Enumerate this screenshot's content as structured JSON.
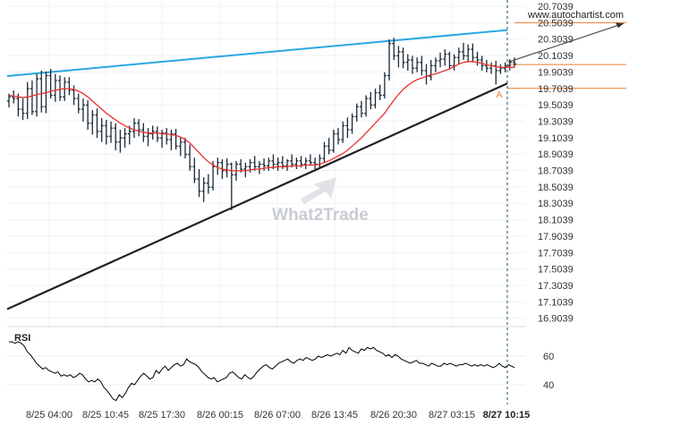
{
  "chart_data": {
    "type": "candlestick",
    "source_label": "www.autochartist.com",
    "watermark": "What2Trade",
    "pattern_label": "A",
    "colors": {
      "upper_trendline": "#29a8e0",
      "lower_trendline": "#222222",
      "moving_average": "#e8302a",
      "price_bars": "#1b2a36",
      "level_lines": "#f07b2d",
      "rsi_line": "#000000",
      "current_time_line": "#1e5a7a",
      "watermark": "#c8ccd2"
    },
    "y_axis": {
      "ticks": [
        "20.7039",
        "20.5039",
        "20.3039",
        "20.1039",
        "19.9039",
        "19.7039",
        "19.5039",
        "19.3039",
        "19.1039",
        "18.9039",
        "18.7039",
        "18.5039",
        "18.3039",
        "18.1039",
        "17.9039",
        "17.7039",
        "17.5039",
        "17.3039",
        "17.1039",
        "16.9039"
      ],
      "ylim": [
        16.8039,
        20.7539
      ]
    },
    "x_axis": {
      "ticks": [
        "8/25 04:00",
        "8/25 10:45",
        "8/25 17:30",
        "8/26 00:15",
        "8/26 07:00",
        "8/26 13:45",
        "8/26 20:30",
        "8/27 03:15",
        "8/27 10:15"
      ],
      "current_label": "8/27 10:15"
    },
    "rsi": {
      "label": "RSI",
      "ticks": [
        "60",
        "40"
      ],
      "ylim": [
        25,
        75
      ],
      "values": [
        70,
        70,
        69,
        70,
        69,
        67,
        63,
        61,
        58,
        55,
        53,
        51,
        52,
        50,
        49,
        48,
        49,
        46,
        47,
        46,
        47,
        45,
        46,
        48,
        47,
        44,
        42,
        43,
        42,
        44,
        42,
        38,
        36,
        33,
        30,
        29,
        33,
        31,
        34,
        38,
        41,
        40,
        43,
        46,
        48,
        46,
        44,
        45,
        50,
        48,
        51,
        53,
        50,
        52,
        54,
        55,
        53,
        54,
        58,
        56,
        55,
        54,
        52,
        49,
        47,
        45,
        44,
        45,
        42,
        43,
        44,
        45,
        48,
        49,
        47,
        45,
        44,
        47,
        45,
        44,
        46,
        49,
        51,
        53,
        54,
        52,
        51,
        53,
        55,
        56,
        57,
        58,
        56,
        55,
        57,
        58,
        57,
        59,
        58,
        57,
        58,
        60,
        59,
        60,
        61,
        60,
        61,
        62,
        61,
        64,
        62,
        66,
        64,
        63,
        62,
        65,
        64,
        66,
        65,
        66,
        64,
        63,
        62,
        60,
        61,
        59,
        61,
        60,
        58,
        57,
        56,
        55,
        56,
        57,
        55,
        55,
        54,
        53,
        55,
        54,
        53,
        53,
        55,
        54,
        55,
        54,
        53,
        54,
        54,
        55,
        54,
        53,
        54,
        53,
        54,
        53,
        54,
        53,
        52,
        53,
        55,
        53,
        52,
        54,
        53,
        52
      ]
    },
    "trendlines": [
      {
        "name": "upper-resistance",
        "x": [
          "8/24 20:00",
          "8/27 10:15"
        ],
        "y": [
          19.8539,
          20.4139
        ]
      },
      {
        "name": "lower-support",
        "x": [
          "8/24 20:00",
          "8/27 10:15"
        ],
        "y": [
          17.0139,
          19.7639
        ]
      }
    ],
    "levels": [
      19.9939,
      19.7039,
      20.5039
    ],
    "projection": {
      "from": [
        20.0239
      ],
      "to": [
        20.4939
      ]
    },
    "series": [
      {
        "name": "price",
        "ohlc": [
          [
            19.55,
            19.64,
            19.47,
            19.6
          ],
          [
            19.6,
            19.68,
            19.52,
            19.58
          ],
          [
            19.58,
            19.64,
            19.36,
            19.45
          ],
          [
            19.45,
            19.58,
            19.32,
            19.4
          ],
          [
            19.4,
            19.78,
            19.33,
            19.7
          ],
          [
            19.7,
            19.8,
            19.38,
            19.42
          ],
          [
            19.42,
            19.88,
            19.36,
            19.82
          ],
          [
            19.82,
            19.92,
            19.41,
            19.48
          ],
          [
            19.48,
            19.91,
            19.4,
            19.86
          ],
          [
            19.86,
            19.94,
            19.58,
            19.62
          ],
          [
            19.62,
            19.88,
            19.54,
            19.8
          ],
          [
            19.8,
            19.86,
            19.55,
            19.6
          ],
          [
            19.6,
            19.84,
            19.55,
            19.78
          ],
          [
            19.78,
            19.84,
            19.62,
            19.68
          ],
          [
            19.68,
            19.74,
            19.5,
            19.58
          ],
          [
            19.58,
            19.64,
            19.4,
            19.45
          ],
          [
            19.45,
            19.58,
            19.3,
            19.5
          ],
          [
            19.5,
            19.56,
            19.2,
            19.28
          ],
          [
            19.28,
            19.44,
            19.14,
            19.38
          ],
          [
            19.38,
            19.46,
            19.1,
            19.18
          ],
          [
            19.18,
            19.34,
            19.05,
            19.25
          ],
          [
            19.25,
            19.32,
            19.02,
            19.12
          ],
          [
            19.12,
            19.3,
            19.04,
            19.22
          ],
          [
            19.22,
            19.28,
            18.95,
            19.05
          ],
          [
            19.05,
            19.2,
            18.92,
            19.1
          ],
          [
            19.1,
            19.22,
            18.98,
            19.15
          ],
          [
            19.15,
            19.25,
            19.02,
            19.18
          ],
          [
            19.18,
            19.34,
            19.1,
            19.28
          ],
          [
            19.28,
            19.33,
            19.12,
            19.2
          ],
          [
            19.2,
            19.28,
            19.05,
            19.12
          ],
          [
            19.12,
            19.22,
            19.0,
            19.15
          ],
          [
            19.15,
            19.25,
            19.08,
            19.18
          ],
          [
            19.18,
            19.24,
            19.05,
            19.1
          ],
          [
            19.1,
            19.2,
            18.98,
            19.16
          ],
          [
            19.16,
            19.22,
            19.02,
            19.08
          ],
          [
            19.08,
            19.2,
            18.95,
            19.15
          ],
          [
            19.15,
            19.21,
            18.96,
            19.0
          ],
          [
            19.0,
            19.1,
            18.88,
            19.05
          ],
          [
            19.05,
            19.1,
            18.85,
            18.9
          ],
          [
            18.9,
            19.02,
            18.7,
            18.75
          ],
          [
            18.75,
            18.86,
            18.55,
            18.6
          ],
          [
            18.6,
            18.72,
            18.38,
            18.45
          ],
          [
            18.45,
            18.62,
            18.32,
            18.55
          ],
          [
            18.55,
            18.66,
            18.42,
            18.5
          ],
          [
            18.5,
            18.82,
            18.46,
            18.75
          ],
          [
            18.75,
            18.86,
            18.65,
            18.8
          ],
          [
            18.8,
            18.84,
            18.6,
            18.7
          ],
          [
            18.7,
            18.85,
            18.62,
            18.78
          ],
          [
            18.78,
            18.8,
            18.22,
            18.65
          ],
          [
            18.65,
            18.82,
            18.58,
            18.78
          ],
          [
            18.78,
            18.84,
            18.68,
            18.72
          ],
          [
            18.72,
            18.8,
            18.62,
            18.75
          ],
          [
            18.75,
            18.84,
            18.68,
            18.8
          ],
          [
            18.8,
            18.88,
            18.7,
            18.75
          ],
          [
            18.75,
            18.82,
            18.66,
            18.78
          ],
          [
            18.78,
            18.85,
            18.7,
            18.76
          ],
          [
            18.76,
            18.86,
            18.7,
            18.82
          ],
          [
            18.82,
            18.9,
            18.72,
            18.78
          ],
          [
            18.78,
            18.86,
            18.7,
            18.8
          ],
          [
            18.8,
            18.88,
            18.72,
            18.76
          ],
          [
            18.76,
            18.84,
            18.7,
            18.82
          ],
          [
            18.82,
            18.9,
            18.74,
            18.78
          ],
          [
            18.78,
            18.86,
            18.72,
            18.82
          ],
          [
            18.82,
            18.88,
            18.74,
            18.78
          ],
          [
            18.78,
            18.86,
            18.72,
            18.82
          ],
          [
            18.82,
            18.9,
            18.76,
            18.8
          ],
          [
            18.8,
            18.86,
            18.72,
            18.78
          ],
          [
            18.78,
            18.9,
            18.74,
            18.85
          ],
          [
            18.85,
            19.05,
            18.8,
            19.0
          ],
          [
            19.0,
            19.1,
            18.9,
            18.95
          ],
          [
            18.95,
            19.2,
            18.92,
            19.15
          ],
          [
            19.15,
            19.22,
            19.02,
            19.08
          ],
          [
            19.08,
            19.3,
            19.04,
            19.25
          ],
          [
            19.25,
            19.35,
            19.1,
            19.2
          ],
          [
            19.2,
            19.4,
            19.15,
            19.36
          ],
          [
            19.36,
            19.52,
            19.3,
            19.48
          ],
          [
            19.48,
            19.55,
            19.35,
            19.4
          ],
          [
            19.4,
            19.62,
            19.36,
            19.58
          ],
          [
            19.58,
            19.66,
            19.45,
            19.5
          ],
          [
            19.5,
            19.7,
            19.46,
            19.65
          ],
          [
            19.65,
            19.75,
            19.56,
            19.62
          ],
          [
            19.62,
            19.9,
            19.58,
            19.86
          ],
          [
            19.86,
            20.3,
            19.8,
            20.25
          ],
          [
            20.25,
            20.32,
            20.05,
            20.1
          ],
          [
            20.1,
            20.22,
            19.96,
            20.15
          ],
          [
            20.15,
            20.2,
            19.95,
            20.02
          ],
          [
            20.02,
            20.12,
            19.92,
            20.05
          ],
          [
            20.05,
            20.1,
            19.88,
            19.95
          ],
          [
            19.95,
            20.08,
            19.9,
            20.02
          ],
          [
            20.02,
            20.1,
            19.86,
            19.92
          ],
          [
            19.92,
            20.0,
            19.75,
            19.85
          ],
          [
            19.85,
            20.05,
            19.8,
            19.98
          ],
          [
            19.98,
            20.08,
            19.9,
            20.04
          ],
          [
            20.04,
            20.14,
            19.96,
            20.06
          ],
          [
            20.06,
            20.18,
            19.98,
            20.12
          ],
          [
            20.12,
            20.15,
            19.94,
            19.98
          ],
          [
            19.98,
            20.12,
            19.92,
            20.08
          ],
          [
            20.08,
            20.2,
            20.0,
            20.15
          ],
          [
            20.15,
            20.26,
            20.05,
            20.1
          ],
          [
            20.1,
            20.24,
            20.02,
            20.18
          ],
          [
            20.18,
            20.25,
            20.02,
            20.08
          ],
          [
            20.08,
            20.15,
            19.98,
            20.05
          ],
          [
            20.05,
            20.1,
            19.92,
            19.98
          ],
          [
            19.98,
            20.05,
            19.9,
            19.95
          ],
          [
            19.95,
            20.02,
            19.88,
            19.98
          ],
          [
            19.98,
            20.04,
            19.75,
            19.92
          ],
          [
            19.92,
            20.0,
            19.88,
            19.95
          ],
          [
            19.95,
            20.02,
            19.9,
            19.98
          ],
          [
            19.98,
            20.06,
            19.92,
            20.02
          ],
          [
            20.02,
            20.08,
            19.96,
            20.0
          ]
        ]
      },
      {
        "name": "moving-average",
        "values": [
          19.62,
          19.61,
          19.6,
          19.59,
          19.6,
          19.61,
          19.63,
          19.64,
          19.65,
          19.67,
          19.68,
          19.69,
          19.7,
          19.7,
          19.69,
          19.67,
          19.64,
          19.6,
          19.55,
          19.5,
          19.45,
          19.4,
          19.36,
          19.32,
          19.28,
          19.25,
          19.22,
          19.2,
          19.18,
          19.17,
          19.16,
          19.16,
          19.16,
          19.15,
          19.15,
          19.14,
          19.13,
          19.11,
          19.08,
          19.04,
          18.98,
          18.92,
          18.86,
          18.81,
          18.77,
          18.74,
          18.72,
          18.71,
          18.7,
          18.7,
          18.7,
          18.7,
          18.71,
          18.72,
          18.72,
          18.73,
          18.74,
          18.74,
          18.75,
          18.75,
          18.75,
          18.76,
          18.76,
          18.76,
          18.77,
          18.77,
          18.77,
          18.78,
          18.8,
          18.82,
          18.85,
          18.88,
          18.91,
          18.95,
          19.0,
          19.05,
          19.1,
          19.16,
          19.22,
          19.28,
          19.34,
          19.4,
          19.48,
          19.56,
          19.63,
          19.69,
          19.74,
          19.78,
          19.81,
          19.83,
          19.85,
          19.87,
          19.88,
          19.9,
          19.92,
          19.94,
          19.97,
          20.0,
          20.02,
          20.03,
          20.03,
          20.02,
          20.01,
          19.99,
          19.98,
          19.97,
          19.96,
          19.96,
          19.96,
          19.96
        ]
      }
    ]
  }
}
